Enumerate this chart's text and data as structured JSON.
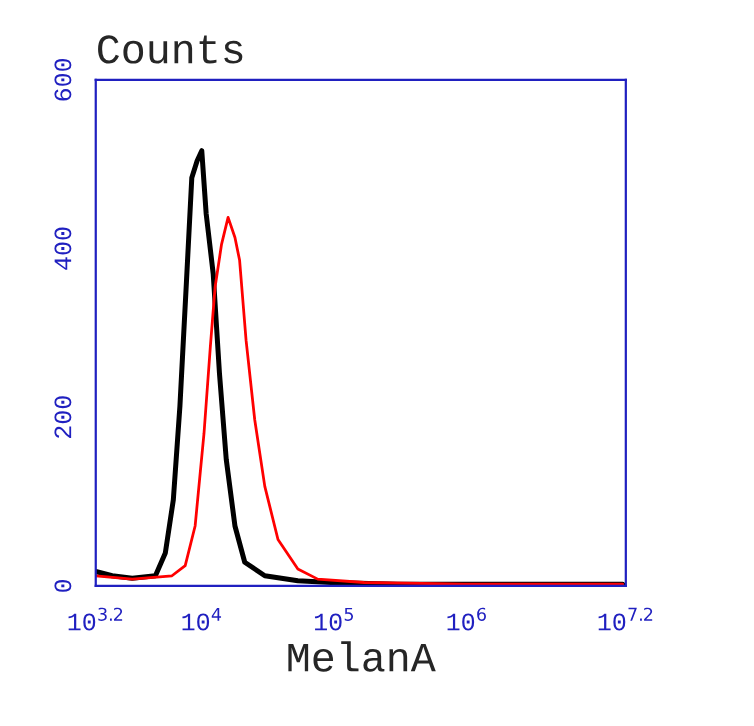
{
  "chart_data": {
    "type": "line",
    "title": "Counts",
    "xlabel": "MelanA",
    "log": "x",
    "series": [
      {
        "color": "#000000",
        "x": [
          1585,
          2110,
          2990,
          4470,
          5310,
          6100,
          6840,
          7670,
          8410,
          9230,
          10000,
          10800,
          12200,
          13600,
          15300,
          17800,
          21100,
          29900,
          53100,
          94400,
          299000,
          2990000,
          15000000
        ],
        "values": [
          17,
          12,
          9,
          12,
          39,
          102,
          213,
          362,
          484,
          504,
          516,
          441,
          370,
          252,
          150,
          71,
          28,
          12,
          6,
          4,
          2,
          2,
          2
        ]
      },
      {
        "color": "#ff0000",
        "x": [
          1585,
          2990,
          5960,
          7500,
          8910,
          10400,
          11600,
          12600,
          14100,
          15800,
          17800,
          19300,
          21600,
          25100,
          29900,
          37600,
          53100,
          75000,
          168000,
          944000,
          15000000
        ],
        "values": [
          12,
          8,
          12,
          24,
          71,
          181,
          283,
          354,
          405,
          437,
          413,
          386,
          291,
          197,
          118,
          55,
          20,
          8,
          4,
          2,
          2
        ]
      }
    ],
    "xlim": [
      1585,
      15850000
    ],
    "xticks": [
      {
        "value": 1585,
        "label": "10$^{3.2}$"
      },
      {
        "value": 10000,
        "label": "10$^{4}$"
      },
      {
        "value": 100000,
        "label": "10$^{5}$"
      },
      {
        "value": 1000000,
        "label": "10$^{6}$"
      },
      {
        "value": 15850000,
        "label": "10$^{7.2}$"
      }
    ],
    "ylim": [
      0,
      600
    ],
    "yticks": [
      0,
      200,
      400,
      600
    ],
    "grid": false,
    "legend": false
  }
}
